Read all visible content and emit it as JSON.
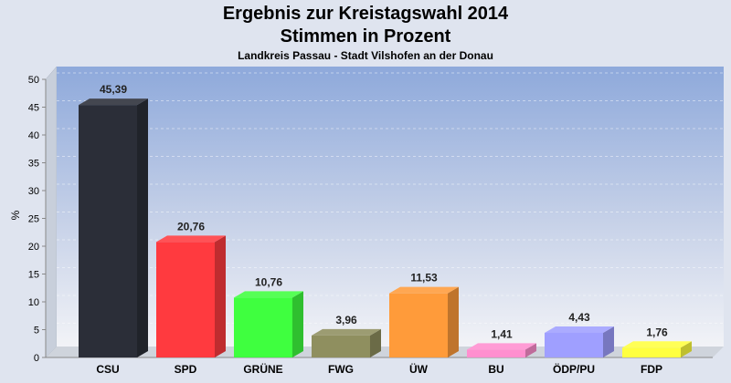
{
  "chart_data": {
    "type": "bar",
    "title": "Ergebnis zur Kreistagswahl 2014",
    "subtitle": "Stimmen in Prozent",
    "subsubtitle": "Landkreis Passau - Stadt Vilshofen an der Donau",
    "ylabel": "%",
    "xlabel": "",
    "ylim": [
      0,
      50
    ],
    "yticks": [
      0,
      5,
      10,
      15,
      20,
      25,
      30,
      35,
      40,
      45,
      50
    ],
    "grid": true,
    "categories": [
      "CSU",
      "SPD",
      "GRÜNE",
      "FWG",
      "ÜW",
      "BU",
      "ÖDP/PU",
      "FDP"
    ],
    "values": [
      45.39,
      20.76,
      10.76,
      3.96,
      11.53,
      1.41,
      4.43,
      1.76
    ],
    "value_labels": [
      "45,39",
      "20,76",
      "10,76",
      "3,96",
      "11,53",
      "1,41",
      "4,43",
      "1,76"
    ],
    "colors": [
      "#2b2e38",
      "#ff3a3f",
      "#3fff3f",
      "#8f8f5f",
      "#ff9b3a",
      "#ff8fcf",
      "#9f9fff",
      "#ffff3f"
    ]
  }
}
